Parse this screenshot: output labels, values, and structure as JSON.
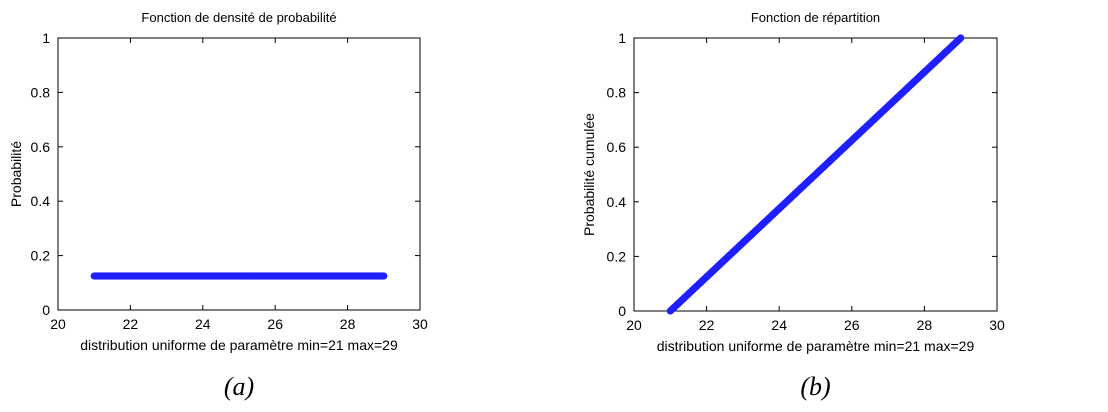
{
  "chart_data": [
    {
      "type": "scatter",
      "title": "Fonction de densité de probabilité",
      "xlabel": "distribution uniforme de paramètre min=21 max=29",
      "ylabel": "Probabilité",
      "xlim": [
        20,
        30
      ],
      "ylim": [
        0,
        1
      ],
      "xticks": [
        "20",
        "22",
        "24",
        "26",
        "28",
        "30"
      ],
      "yticks": [
        "0",
        "0.2",
        "0.4",
        "0.6",
        "0.8",
        "1"
      ],
      "grid": false,
      "color": "#1f1fff",
      "series": [
        {
          "x": [
            21,
            29
          ],
          "y": [
            0.125,
            0.125
          ]
        }
      ],
      "caption": "(a)"
    },
    {
      "type": "scatter",
      "title": "Fonction de répartition",
      "xlabel": "distribution uniforme de paramètre min=21 max=29",
      "ylabel": "Probabilité cumulée",
      "xlim": [
        20,
        30
      ],
      "ylim": [
        0,
        1
      ],
      "xticks": [
        "20",
        "22",
        "24",
        "26",
        "28",
        "30"
      ],
      "yticks": [
        "0",
        "0.2",
        "0.4",
        "0.6",
        "0.8",
        "1"
      ],
      "grid": false,
      "color": "#1f1fff",
      "series": [
        {
          "x": [
            21,
            29
          ],
          "y": [
            0,
            1
          ]
        }
      ],
      "caption": "(b)"
    }
  ]
}
